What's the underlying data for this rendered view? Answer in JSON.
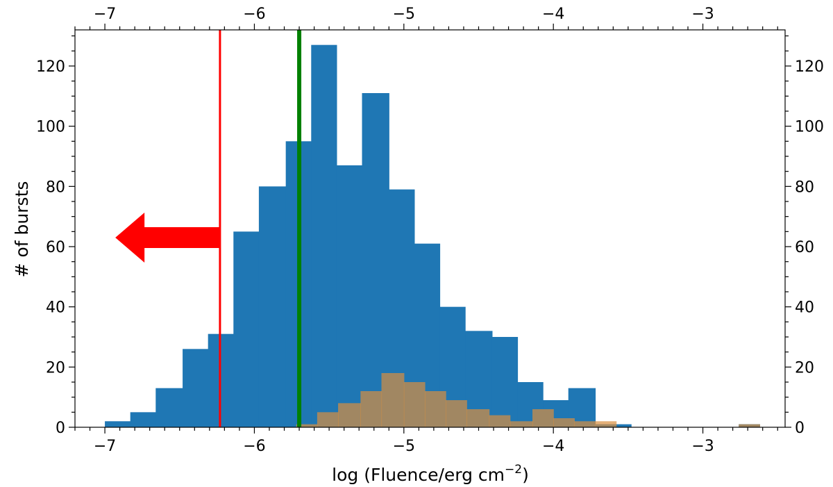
{
  "chart_data": {
    "type": "bar",
    "xlabel": "log (Fluence/erg cm",
    "xlabel_sup": "−2",
    "ylabel": "# of bursts",
    "xlim": [
      -7.2,
      -2.45
    ],
    "ylim": [
      0,
      132
    ],
    "x_ticks": [
      -7,
      -6,
      -5,
      -4,
      -3
    ],
    "x_tick_labels": [
      "−7",
      "−6",
      "−5",
      "−4",
      "−3"
    ],
    "y_ticks": [
      0,
      20,
      40,
      60,
      80,
      100,
      120
    ],
    "y_tick_labels": [
      "0",
      "20",
      "40",
      "60",
      "80",
      "100",
      "120"
    ],
    "series": [
      {
        "color": "#1f77b4",
        "bins": [
          [
            -7.0,
            -6.83,
            2
          ],
          [
            -6.83,
            -6.66,
            5
          ],
          [
            -6.66,
            -6.48,
            13
          ],
          [
            -6.48,
            -6.31,
            26
          ],
          [
            -6.31,
            -6.14,
            31
          ],
          [
            -6.14,
            -5.97,
            65
          ],
          [
            -5.97,
            -5.79,
            80
          ],
          [
            -5.79,
            -5.62,
            95
          ],
          [
            -5.62,
            -5.45,
            127
          ],
          [
            -5.45,
            -5.28,
            87
          ],
          [
            -5.28,
            -5.1,
            111
          ],
          [
            -5.1,
            -4.93,
            79
          ],
          [
            -4.93,
            -4.76,
            61
          ],
          [
            -4.76,
            -4.59,
            40
          ],
          [
            -4.59,
            -4.41,
            32
          ],
          [
            -4.41,
            -4.24,
            30
          ],
          [
            -4.24,
            -4.07,
            15
          ],
          [
            -4.07,
            -3.9,
            9
          ],
          [
            -3.9,
            -3.72,
            13
          ],
          [
            -3.72,
            -3.55,
            1
          ],
          [
            -3.55,
            -3.48,
            1
          ],
          [
            -2.76,
            -2.62,
            1
          ]
        ]
      },
      {
        "color": "#d98e3f",
        "bins": [
          [
            -5.72,
            -5.58,
            1
          ],
          [
            -5.58,
            -5.44,
            5
          ],
          [
            -5.44,
            -5.29,
            8
          ],
          [
            -5.29,
            -5.15,
            12
          ],
          [
            -5.15,
            -5.0,
            18
          ],
          [
            -5.0,
            -4.86,
            15
          ],
          [
            -4.86,
            -4.72,
            12
          ],
          [
            -4.72,
            -4.58,
            9
          ],
          [
            -4.58,
            -4.43,
            6
          ],
          [
            -4.43,
            -4.29,
            4
          ],
          [
            -4.29,
            -4.14,
            2
          ],
          [
            -4.14,
            -4.0,
            6
          ],
          [
            -4.0,
            -3.86,
            3
          ],
          [
            -3.86,
            -3.72,
            2
          ],
          [
            -3.72,
            -3.58,
            2
          ],
          [
            -2.76,
            -2.62,
            1
          ]
        ]
      }
    ],
    "vlines": [
      {
        "x": -6.23,
        "color": "#ff0000"
      },
      {
        "x": -5.7,
        "color": "#008000"
      }
    ],
    "arrow": {
      "x_start": -6.23,
      "x_end": -6.93,
      "y": 63,
      "color": "#ff0000"
    }
  }
}
